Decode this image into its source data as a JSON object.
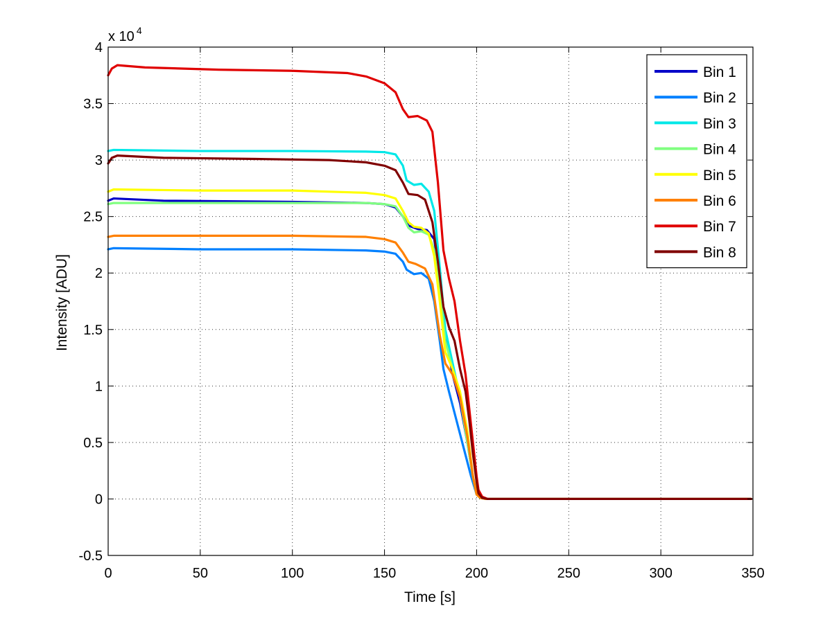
{
  "chart_data": {
    "type": "line",
    "title": "",
    "xlabel": "Time [s]",
    "ylabel": "Intensity [ADU]",
    "xlim": [
      0,
      350
    ],
    "ylim": [
      -5000,
      40000
    ],
    "xticks": [
      0,
      50,
      100,
      150,
      200,
      250,
      300,
      350
    ],
    "yticks": [
      -5000,
      0,
      5000,
      10000,
      15000,
      20000,
      25000,
      30000,
      35000,
      40000
    ],
    "xtick_labels": [
      "0",
      "50",
      "100",
      "150",
      "200",
      "250",
      "300",
      "350"
    ],
    "ytick_labels": [
      "-0.5",
      "0",
      "0.5",
      "1",
      "1.5",
      "2",
      "2.5",
      "3",
      "3.5",
      "4"
    ],
    "y_multiplier": {
      "text": "x 10",
      "exponent": "4"
    },
    "grid": true,
    "legend_position": "top-right",
    "series": [
      {
        "name": "Bin 1",
        "color": "#0000c8",
        "points": [
          [
            0,
            26400
          ],
          [
            3,
            26600
          ],
          [
            30,
            26400
          ],
          [
            100,
            26300
          ],
          [
            140,
            26200
          ],
          [
            150,
            26100
          ],
          [
            156,
            25800
          ],
          [
            160,
            25000
          ],
          [
            163,
            24200
          ],
          [
            168,
            23900
          ],
          [
            173,
            23800
          ],
          [
            177,
            23000
          ],
          [
            180,
            19500
          ],
          [
            183,
            14500
          ],
          [
            187,
            11000
          ],
          [
            191,
            8500
          ],
          [
            195,
            5000
          ],
          [
            198,
            2000
          ],
          [
            200,
            400
          ],
          [
            202,
            100
          ],
          [
            205,
            0
          ],
          [
            349,
            0
          ]
        ]
      },
      {
        "name": "Bin 2",
        "color": "#0080ff",
        "points": [
          [
            0,
            22100
          ],
          [
            3,
            22200
          ],
          [
            50,
            22100
          ],
          [
            100,
            22100
          ],
          [
            140,
            22000
          ],
          [
            150,
            21900
          ],
          [
            156,
            21700
          ],
          [
            160,
            21000
          ],
          [
            162,
            20300
          ],
          [
            166,
            19900
          ],
          [
            170,
            20000
          ],
          [
            174,
            19500
          ],
          [
            177,
            17500
          ],
          [
            180,
            14000
          ],
          [
            182,
            11500
          ],
          [
            185,
            9500
          ],
          [
            189,
            7000
          ],
          [
            193,
            4500
          ],
          [
            197,
            2000
          ],
          [
            200,
            400
          ],
          [
            202,
            100
          ],
          [
            205,
            0
          ],
          [
            349,
            0
          ]
        ]
      },
      {
        "name": "Bin 3",
        "color": "#00e8e8",
        "points": [
          [
            0,
            30800
          ],
          [
            3,
            30900
          ],
          [
            50,
            30800
          ],
          [
            100,
            30800
          ],
          [
            140,
            30750
          ],
          [
            150,
            30700
          ],
          [
            156,
            30500
          ],
          [
            160,
            29500
          ],
          [
            162,
            28200
          ],
          [
            166,
            27800
          ],
          [
            170,
            27900
          ],
          [
            174,
            27200
          ],
          [
            177,
            25500
          ],
          [
            180,
            20500
          ],
          [
            183,
            15000
          ],
          [
            187,
            12000
          ],
          [
            191,
            9000
          ],
          [
            195,
            5000
          ],
          [
            198,
            2000
          ],
          [
            200,
            400
          ],
          [
            202,
            100
          ],
          [
            205,
            0
          ],
          [
            349,
            0
          ]
        ]
      },
      {
        "name": "Bin 4",
        "color": "#80ff80",
        "points": [
          [
            0,
            26100
          ],
          [
            3,
            26200
          ],
          [
            50,
            26200
          ],
          [
            100,
            26200
          ],
          [
            140,
            26200
          ],
          [
            150,
            26100
          ],
          [
            156,
            25900
          ],
          [
            160,
            25000
          ],
          [
            163,
            24000
          ],
          [
            166,
            23600
          ],
          [
            170,
            23700
          ],
          [
            174,
            23400
          ],
          [
            177,
            22000
          ],
          [
            180,
            18500
          ],
          [
            183,
            14000
          ],
          [
            187,
            11500
          ],
          [
            191,
            9000
          ],
          [
            195,
            5000
          ],
          [
            198,
            2000
          ],
          [
            200,
            400
          ],
          [
            202,
            100
          ],
          [
            205,
            0
          ],
          [
            349,
            0
          ]
        ]
      },
      {
        "name": "Bin 5",
        "color": "#ffff00",
        "points": [
          [
            0,
            27200
          ],
          [
            3,
            27400
          ],
          [
            50,
            27300
          ],
          [
            100,
            27300
          ],
          [
            140,
            27100
          ],
          [
            150,
            26900
          ],
          [
            156,
            26600
          ],
          [
            160,
            25500
          ],
          [
            163,
            24500
          ],
          [
            166,
            24100
          ],
          [
            170,
            24000
          ],
          [
            174,
            23500
          ],
          [
            177,
            21500
          ],
          [
            180,
            17500
          ],
          [
            183,
            13000
          ],
          [
            187,
            11500
          ],
          [
            191,
            9500
          ],
          [
            195,
            6000
          ],
          [
            198,
            2000
          ],
          [
            200,
            400
          ],
          [
            202,
            100
          ],
          [
            205,
            0
          ],
          [
            349,
            0
          ]
        ]
      },
      {
        "name": "Bin 6",
        "color": "#ff8000",
        "points": [
          [
            0,
            23200
          ],
          [
            3,
            23300
          ],
          [
            50,
            23300
          ],
          [
            100,
            23300
          ],
          [
            140,
            23200
          ],
          [
            150,
            23000
          ],
          [
            156,
            22700
          ],
          [
            160,
            21800
          ],
          [
            163,
            21000
          ],
          [
            167,
            20800
          ],
          [
            172,
            20400
          ],
          [
            176,
            19000
          ],
          [
            180,
            14500
          ],
          [
            183,
            12000
          ],
          [
            187,
            11000
          ],
          [
            191,
            9000
          ],
          [
            195,
            5500
          ],
          [
            198,
            2000
          ],
          [
            200,
            400
          ],
          [
            202,
            100
          ],
          [
            205,
            0
          ],
          [
            349,
            0
          ]
        ]
      },
      {
        "name": "Bin 7",
        "color": "#e00000",
        "points": [
          [
            0,
            37500
          ],
          [
            2,
            38100
          ],
          [
            5,
            38400
          ],
          [
            20,
            38200
          ],
          [
            60,
            38000
          ],
          [
            100,
            37900
          ],
          [
            130,
            37700
          ],
          [
            140,
            37400
          ],
          [
            150,
            36800
          ],
          [
            156,
            36000
          ],
          [
            160,
            34500
          ],
          [
            163,
            33800
          ],
          [
            168,
            33900
          ],
          [
            173,
            33500
          ],
          [
            176,
            32500
          ],
          [
            179,
            28000
          ],
          [
            182,
            22000
          ],
          [
            185,
            19500
          ],
          [
            188,
            17500
          ],
          [
            191,
            14000
          ],
          [
            194,
            11000
          ],
          [
            196,
            8000
          ],
          [
            198,
            5000
          ],
          [
            200,
            2000
          ],
          [
            201,
            800
          ],
          [
            203,
            200
          ],
          [
            206,
            0
          ],
          [
            349,
            0
          ]
        ]
      },
      {
        "name": "Bin 8",
        "color": "#800000",
        "points": [
          [
            0,
            29700
          ],
          [
            2,
            30200
          ],
          [
            5,
            30400
          ],
          [
            30,
            30200
          ],
          [
            80,
            30100
          ],
          [
            120,
            30000
          ],
          [
            140,
            29800
          ],
          [
            150,
            29500
          ],
          [
            156,
            29100
          ],
          [
            160,
            28000
          ],
          [
            163,
            27000
          ],
          [
            168,
            26900
          ],
          [
            172,
            26500
          ],
          [
            176,
            24500
          ],
          [
            179,
            21000
          ],
          [
            182,
            17000
          ],
          [
            185,
            15200
          ],
          [
            188,
            14000
          ],
          [
            191,
            11500
          ],
          [
            194,
            9500
          ],
          [
            196,
            7000
          ],
          [
            198,
            4000
          ],
          [
            200,
            1500
          ],
          [
            201,
            500
          ],
          [
            203,
            100
          ],
          [
            206,
            0
          ],
          [
            349,
            0
          ]
        ]
      }
    ]
  }
}
